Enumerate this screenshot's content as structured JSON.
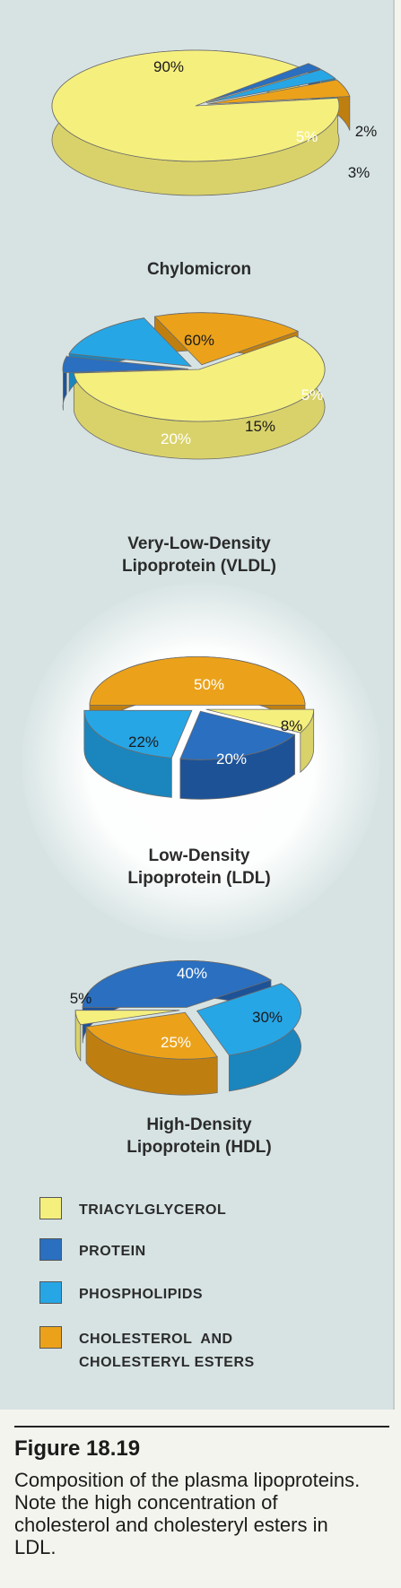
{
  "chart_data": [
    {
      "type": "pie",
      "title": "Chylomicron",
      "slices": [
        {
          "category": "triacylglycerol",
          "value": 90,
          "label": "90%"
        },
        {
          "category": "protein",
          "value": 2,
          "label": "2%"
        },
        {
          "category": "phospholipids",
          "value": 3,
          "label": "3%"
        },
        {
          "category": "cholesterol",
          "value": 5,
          "label": "5%"
        }
      ]
    },
    {
      "type": "pie",
      "title": "Very-Low-Density Lipoprotein (VLDL)",
      "title_lines": [
        "Very-Low-Density",
        "Lipoprotein (VLDL)"
      ],
      "slices": [
        {
          "category": "triacylglycerol",
          "value": 60,
          "label": "60%"
        },
        {
          "category": "protein",
          "value": 5,
          "label": "5%"
        },
        {
          "category": "phospholipids",
          "value": 15,
          "label": "15%"
        },
        {
          "category": "cholesterol",
          "value": 20,
          "label": "20%"
        }
      ]
    },
    {
      "type": "pie",
      "title": "Low-Density Lipoprotein (LDL)",
      "title_lines": [
        "Low-Density",
        "Lipoprotein (LDL)"
      ],
      "slices": [
        {
          "category": "cholesterol",
          "value": 50,
          "label": "50%"
        },
        {
          "category": "triacylglycerol",
          "value": 8,
          "label": "8%"
        },
        {
          "category": "protein",
          "value": 20,
          "label": "20%"
        },
        {
          "category": "phospholipids",
          "value": 22,
          "label": "22%"
        }
      ]
    },
    {
      "type": "pie",
      "title": "High-Density Lipoprotein (HDL)",
      "title_lines": [
        "High-Density",
        "Lipoprotein (HDL)"
      ],
      "slices": [
        {
          "category": "protein",
          "value": 40,
          "label": "40%"
        },
        {
          "category": "phospholipids",
          "value": 30,
          "label": "30%"
        },
        {
          "category": "cholesterol",
          "value": 25,
          "label": "25%"
        },
        {
          "category": "triacylglycerol",
          "value": 5,
          "label": "5%"
        }
      ]
    }
  ],
  "legend": [
    {
      "category": "triacylglycerol",
      "lines": [
        "TRIACYLGLYCEROL"
      ],
      "color": "#f5ef7e"
    },
    {
      "category": "protein",
      "lines": [
        "PROTEIN"
      ],
      "color": "#2a6fc0"
    },
    {
      "category": "phospholipids",
      "lines": [
        "PHOSPHOLIPIDS"
      ],
      "color": "#27a6e6"
    },
    {
      "category": "cholesterol",
      "lines": [
        "CHOLESTEROL  AND",
        "CHOLESTERYL ESTERS"
      ],
      "color": "#eba21a"
    }
  ],
  "caption": {
    "title": "Figure 18.19",
    "body": "Composition of the plasma lipoproteins. Note the high concentration of cholesterol and cholesteryl esters in LDL."
  }
}
